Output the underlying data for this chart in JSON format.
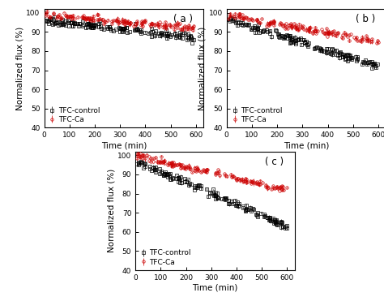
{
  "panel_a": {
    "label": "( a )",
    "control_start": 96,
    "control_end": 87,
    "ca_start": 99,
    "ca_end": 92,
    "ylim": [
      40,
      102
    ],
    "yticks": [
      40,
      50,
      60,
      70,
      80,
      90,
      100
    ]
  },
  "panel_b": {
    "label": "( b )",
    "control_start": 97,
    "control_end": 72,
    "ca_start": 99,
    "ca_end": 85,
    "ylim": [
      40,
      102
    ],
    "yticks": [
      40,
      50,
      60,
      70,
      80,
      90,
      100
    ]
  },
  "panel_c": {
    "label": "( c )",
    "control_start": 97,
    "control_end": 63,
    "ca_start": 100,
    "ca_end": 82,
    "ylim": [
      40,
      102
    ],
    "yticks": [
      40,
      50,
      60,
      70,
      80,
      90,
      100
    ]
  },
  "xlim": [
    0,
    630
  ],
  "xticks": [
    0,
    100,
    200,
    300,
    400,
    500,
    600
  ],
  "xlabel": "Time (min)",
  "ylabel": "Normalized flux (%)",
  "control_color": "#000000",
  "ca_color": "#cc0000",
  "control_label": "TFC-control",
  "ca_label": "TFC-Ca",
  "control_marker": "s",
  "ca_marker": "o",
  "marker_size": 2.5,
  "n_points": 150,
  "noise_level": 1.0,
  "legend_fontsize": 6.5,
  "tick_fontsize": 6.5,
  "label_fontsize": 7.5
}
